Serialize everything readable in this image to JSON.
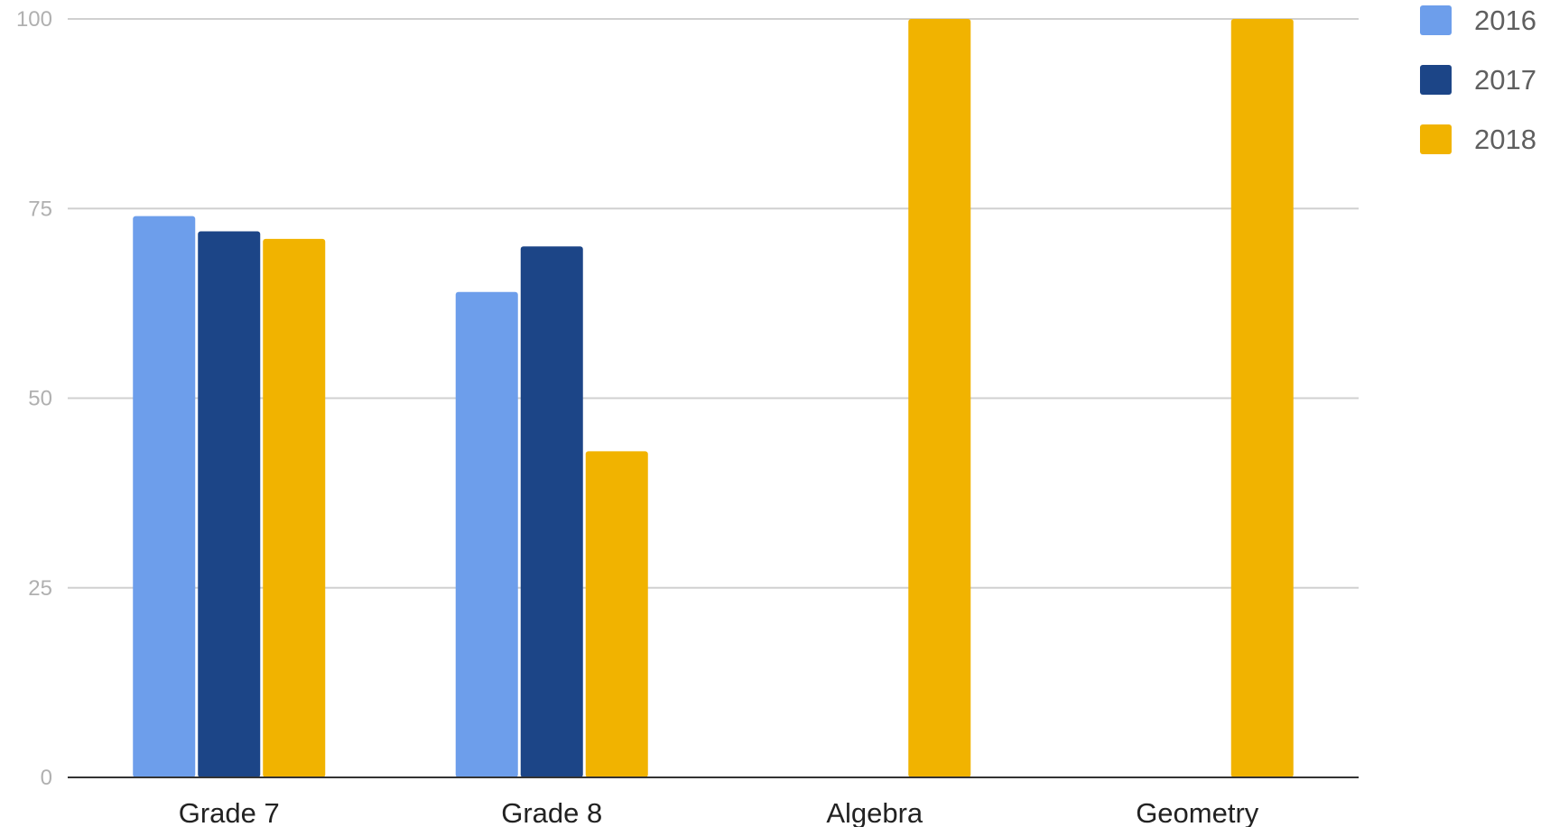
{
  "chart_data": {
    "type": "bar",
    "title": "",
    "xlabel": "",
    "ylabel": "",
    "categories": [
      "Grade 7",
      "Grade 8",
      "Algebra",
      "Geometry"
    ],
    "series": [
      {
        "name": "2016",
        "color": "#6d9eeb",
        "values": [
          74,
          64,
          null,
          null
        ]
      },
      {
        "name": "2017",
        "color": "#1c4587",
        "values": [
          72,
          70,
          null,
          null
        ]
      },
      {
        "name": "2018",
        "color": "#f1b300",
        "values": [
          71,
          43,
          100,
          100
        ]
      }
    ],
    "ylim": [
      0,
      100
    ],
    "yticks": [
      0,
      25,
      50,
      75,
      100
    ],
    "grid": true,
    "legend": "top-right",
    "colors": {
      "grid": "#d0d0d0",
      "axis": "#333333",
      "tick_text": "#b0b0b0",
      "category_text": "#222222",
      "legend_text": "#5f5f5f"
    }
  }
}
